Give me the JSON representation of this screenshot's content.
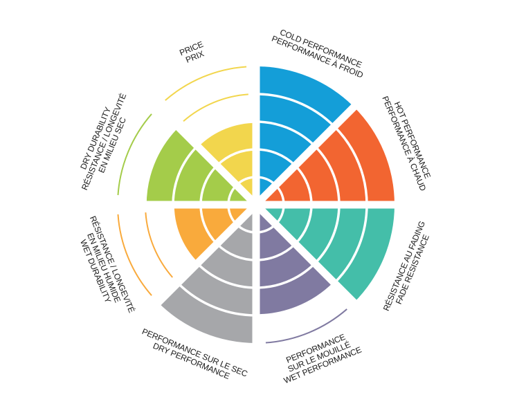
{
  "chart_data": {
    "type": "bar",
    "polar": true,
    "scale_max": 5,
    "grid": true,
    "categories": [
      {
        "lines": [
          "COLD PERFORMANCE",
          "PERFORMANCE À FROID"
        ],
        "value": 5,
        "color": "#149ed8"
      },
      {
        "lines": [
          "HOT PERFORMANCE",
          "PERFORMANCE À CHAUD"
        ],
        "value": 5,
        "color": "#f26531"
      },
      {
        "lines": [
          "RÉSISTANCE AU FADING",
          "FADE RESISTANCE"
        ],
        "value": 5,
        "color": "#44bea9"
      },
      {
        "lines": [
          "PERFORMANCE",
          "SUR LE MOUILLÉ",
          "WET PERFORMANCE"
        ],
        "value": 4,
        "color": "#807aa1"
      },
      {
        "lines": [
          "PERFORMANCE SUR LE SEC",
          "DRY PERFORMANCE"
        ],
        "value": 5,
        "color": "#a6a7aa"
      },
      {
        "lines": [
          "RÉSISTANCE / LONGEVITÉ",
          "EN MILIEU HUMIDE",
          "WET DURABILITY"
        ],
        "value": 3,
        "color": "#f9aa3c"
      },
      {
        "lines": [
          "DRY DURABILITY",
          "RÉSISTANCE / LONGEVITÉ",
          "EN MILIEU SEC"
        ],
        "value": 4,
        "color": "#a4cc4a"
      },
      {
        "lines": [
          "PRICE",
          "PRIX"
        ],
        "value": 3,
        "color": "#f2d64d"
      }
    ]
  }
}
